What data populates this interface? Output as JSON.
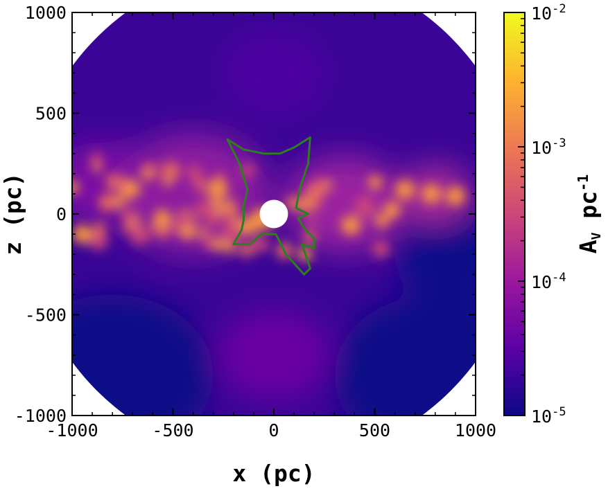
{
  "chart_data": {
    "type": "heatmap",
    "title": "",
    "xlabel": "x (pc)",
    "ylabel": "z (pc)",
    "xlim": [
      -1000,
      1000
    ],
    "ylim": [
      -1000,
      1000
    ],
    "xticks": [
      "-1000",
      "-500",
      "0",
      "500",
      "1000"
    ],
    "yticks": [
      "-1000",
      "-500",
      "0",
      "500",
      "1000"
    ],
    "xtick_values": [
      -1000,
      -500,
      0,
      500,
      1000
    ],
    "ytick_values": [
      -1000,
      -500,
      0,
      500,
      1000
    ],
    "colorbar": {
      "label_main": "A",
      "label_sub": "V",
      "label_unit": "pc",
      "label_exp": "-1",
      "scale": "log",
      "range": [
        1e-05,
        0.01
      ],
      "ticks": [
        {
          "value": 1e-05,
          "base": "10",
          "exp": "-5"
        },
        {
          "value": 0.0001,
          "base": "10",
          "exp": "-4"
        },
        {
          "value": 0.001,
          "base": "10",
          "exp": "-3"
        },
        {
          "value": 0.01,
          "base": "10",
          "exp": "-2"
        }
      ],
      "colormap": [
        "#0d0887",
        "#5c01a6",
        "#9c179e",
        "#cc4778",
        "#ed7953",
        "#fdb42f",
        "#f0f921"
      ]
    },
    "data_radius_pc": 1240,
    "masked_center_radius_pc": 60,
    "contour": {
      "color": "#2e7d1e",
      "points": [
        [
          -230,
          370
        ],
        [
          -150,
          320
        ],
        [
          -50,
          300
        ],
        [
          30,
          300
        ],
        [
          100,
          330
        ],
        [
          180,
          380
        ],
        [
          170,
          250
        ],
        [
          130,
          130
        ],
        [
          110,
          30
        ],
        [
          170,
          0
        ],
        [
          120,
          -20
        ],
        [
          150,
          -70
        ],
        [
          200,
          -120
        ],
        [
          200,
          -170
        ],
        [
          140,
          -150
        ],
        [
          180,
          -270
        ],
        [
          150,
          -300
        ],
        [
          60,
          -200
        ],
        [
          10,
          -100
        ],
        [
          -60,
          -100
        ],
        [
          -120,
          -150
        ],
        [
          -200,
          -150
        ],
        [
          -160,
          -80
        ],
        [
          -150,
          -30
        ],
        [
          -150,
          40
        ],
        [
          -130,
          120
        ],
        [
          -170,
          250
        ]
      ]
    }
  }
}
